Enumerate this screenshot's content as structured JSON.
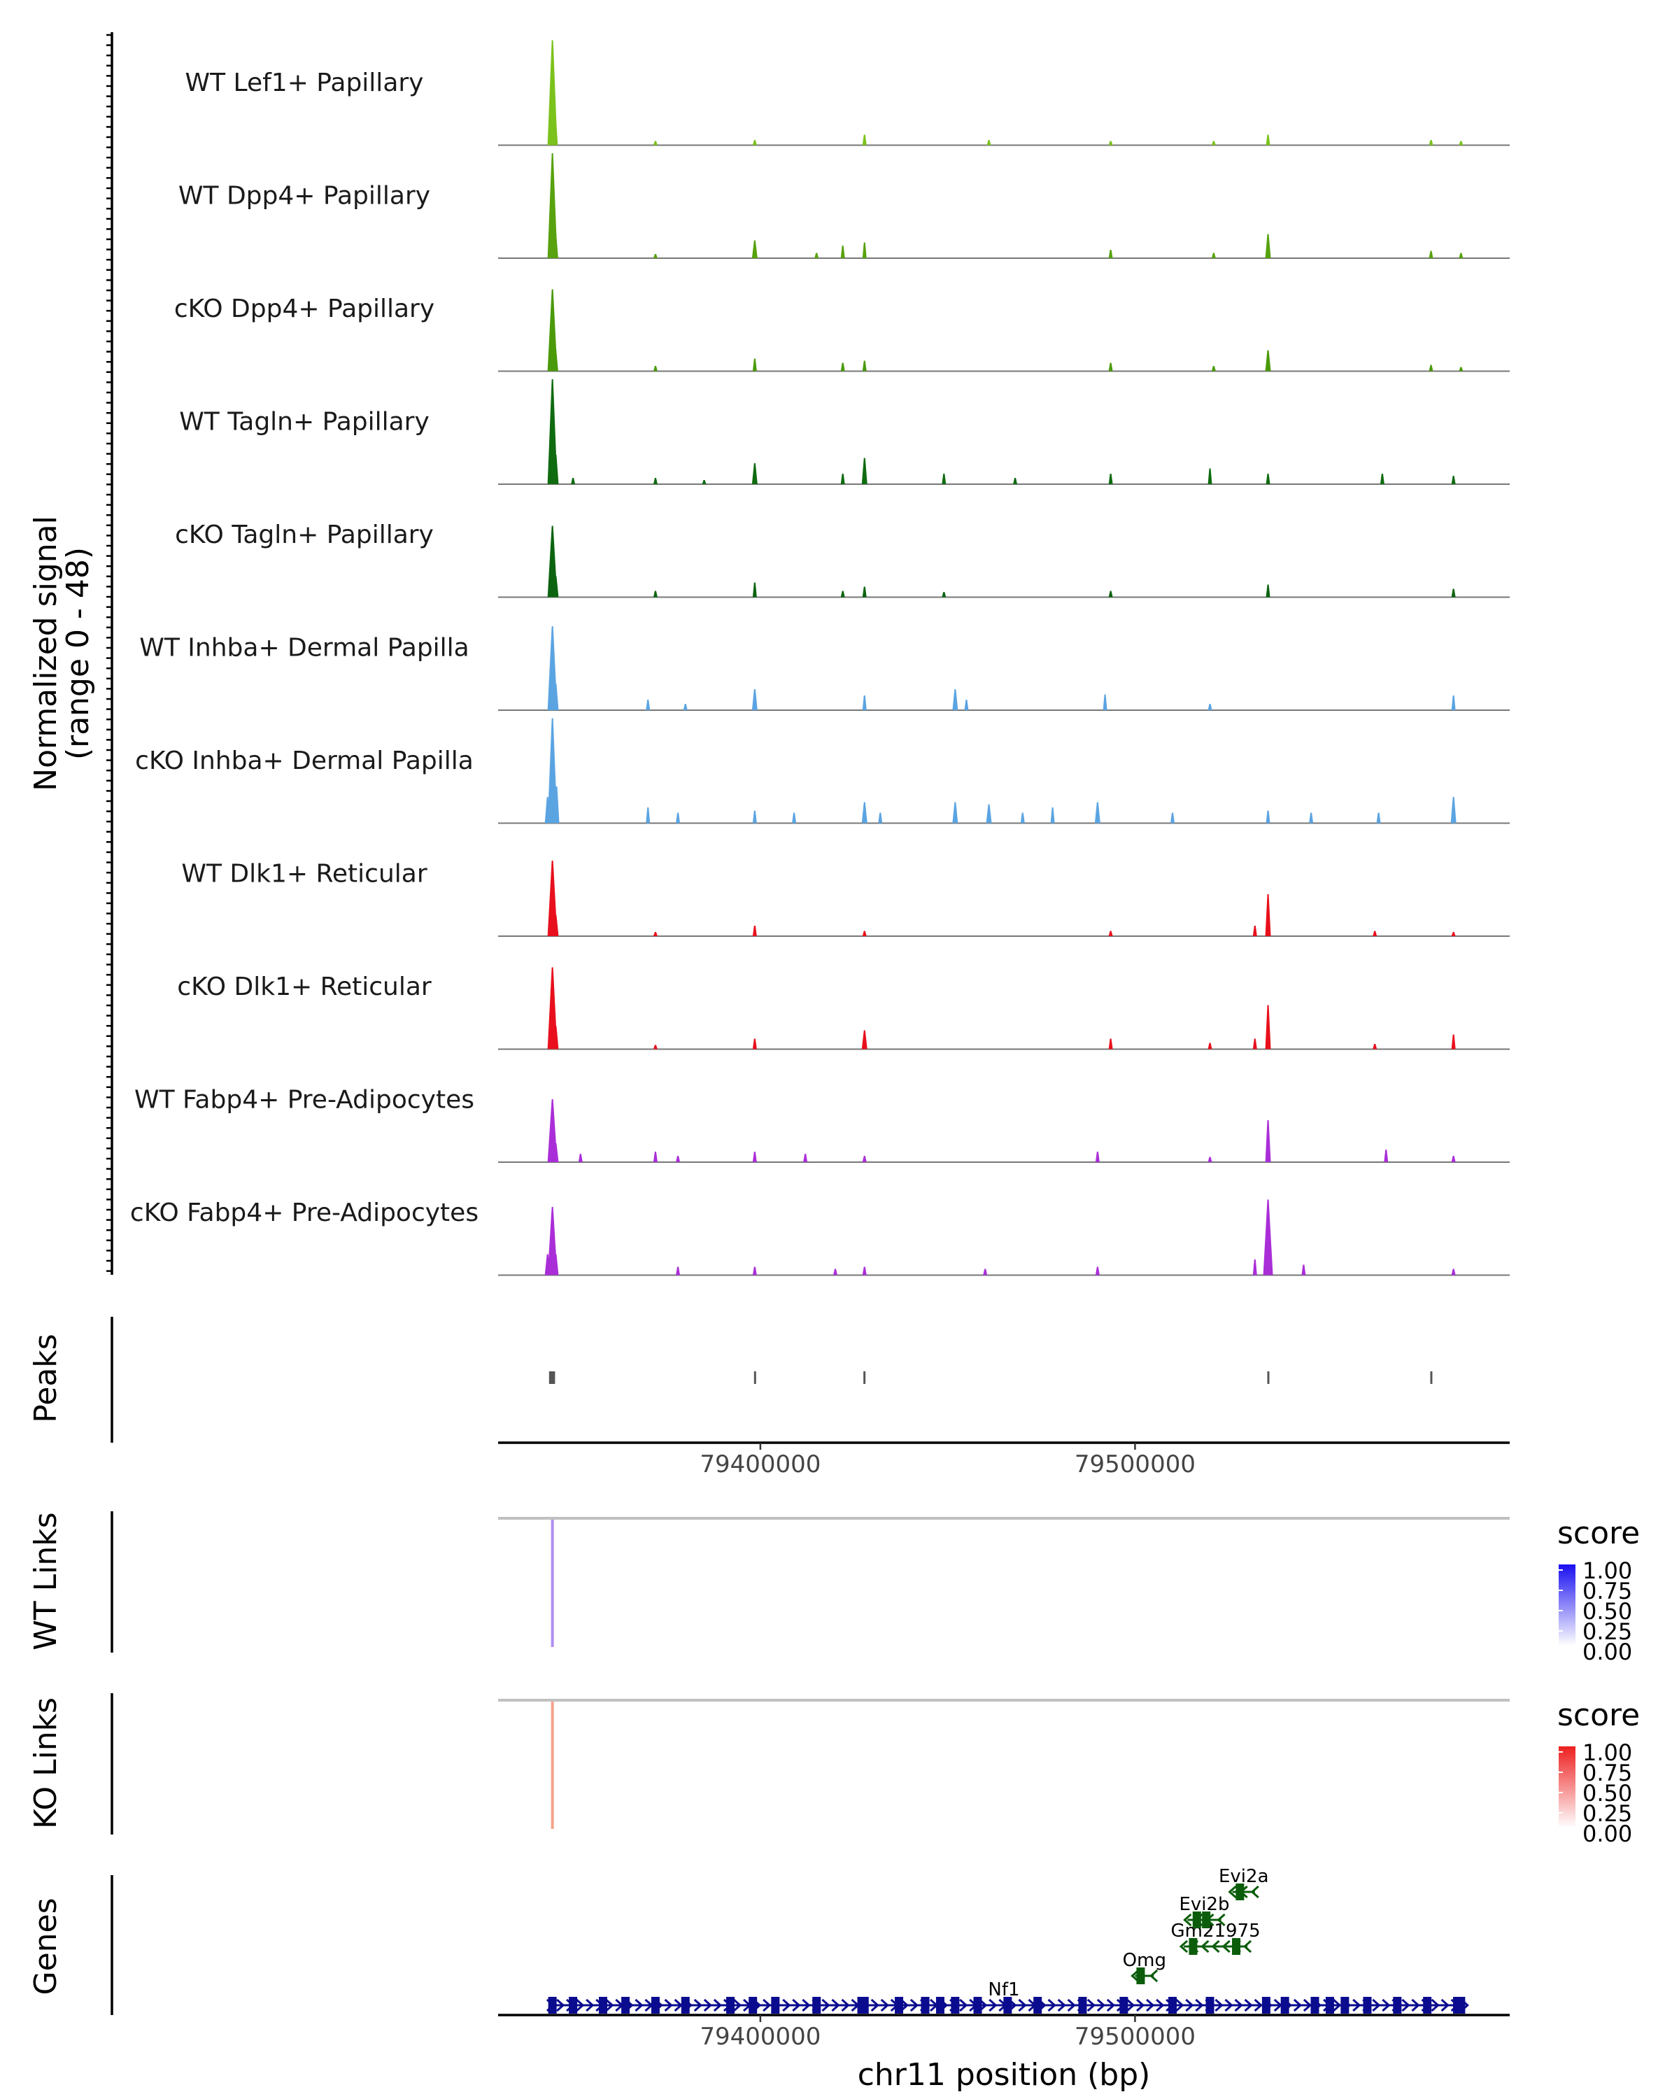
{
  "chart_data": {
    "type": "coverage",
    "chromosome": "chr11",
    "xlabel": "chr11 position (bp)",
    "xlim": [
      79330000,
      79600000
    ],
    "xticks": [
      79400000,
      79500000
    ],
    "xtick_labels": [
      "79400000",
      "79500000"
    ],
    "coverage": {
      "ylabel_line1": "Normalized signal",
      "ylabel_line2": "(range 0 - 48)",
      "ymax": 48,
      "tracks": [
        {
          "label": "WT Lef1+ Papillary",
          "color": "#7cc21c",
          "peaks": [
            {
              "x": 79344500,
              "h": 1.0
            },
            {
              "x": 79345200,
              "h": 0.3
            },
            {
              "x": 79372000,
              "h": 0.04
            },
            {
              "x": 79398500,
              "h": 0.05
            },
            {
              "x": 79427800,
              "h": 0.1
            },
            {
              "x": 79461000,
              "h": 0.05
            },
            {
              "x": 79493500,
              "h": 0.04
            },
            {
              "x": 79521000,
              "h": 0.04
            },
            {
              "x": 79535500,
              "h": 0.1
            },
            {
              "x": 79579000,
              "h": 0.05
            },
            {
              "x": 79587000,
              "h": 0.04
            }
          ]
        },
        {
          "label": "WT Dpp4+ Papillary",
          "color": "#57a20e",
          "peaks": [
            {
              "x": 79344500,
              "h": 1.0
            },
            {
              "x": 79345300,
              "h": 0.25
            },
            {
              "x": 79372000,
              "h": 0.04
            },
            {
              "x": 79398500,
              "h": 0.17
            },
            {
              "x": 79415000,
              "h": 0.05
            },
            {
              "x": 79422000,
              "h": 0.12
            },
            {
              "x": 79427800,
              "h": 0.15
            },
            {
              "x": 79493500,
              "h": 0.08
            },
            {
              "x": 79521000,
              "h": 0.05
            },
            {
              "x": 79535500,
              "h": 0.23
            },
            {
              "x": 79579000,
              "h": 0.07
            },
            {
              "x": 79587000,
              "h": 0.05
            }
          ]
        },
        {
          "label": "cKO Dpp4+ Papillary",
          "color": "#4a9a0a",
          "peaks": [
            {
              "x": 79344500,
              "h": 0.78
            },
            {
              "x": 79345300,
              "h": 0.22
            },
            {
              "x": 79372000,
              "h": 0.05
            },
            {
              "x": 79398500,
              "h": 0.12
            },
            {
              "x": 79422000,
              "h": 0.08
            },
            {
              "x": 79427800,
              "h": 0.1
            },
            {
              "x": 79493500,
              "h": 0.08
            },
            {
              "x": 79521000,
              "h": 0.05
            },
            {
              "x": 79535500,
              "h": 0.2
            },
            {
              "x": 79579000,
              "h": 0.06
            },
            {
              "x": 79587000,
              "h": 0.04
            }
          ]
        },
        {
          "label": "WT Tagln+ Papillary",
          "color": "#0f6b10",
          "peaks": [
            {
              "x": 79344500,
              "h": 1.0
            },
            {
              "x": 79345400,
              "h": 0.28
            },
            {
              "x": 79350000,
              "h": 0.06
            },
            {
              "x": 79372000,
              "h": 0.06
            },
            {
              "x": 79385000,
              "h": 0.04
            },
            {
              "x": 79398500,
              "h": 0.2
            },
            {
              "x": 79422000,
              "h": 0.1
            },
            {
              "x": 79427800,
              "h": 0.25
            },
            {
              "x": 79449000,
              "h": 0.1
            },
            {
              "x": 79468000,
              "h": 0.06
            },
            {
              "x": 79493500,
              "h": 0.1
            },
            {
              "x": 79520000,
              "h": 0.15
            },
            {
              "x": 79535500,
              "h": 0.1
            },
            {
              "x": 79566000,
              "h": 0.1
            },
            {
              "x": 79585000,
              "h": 0.08
            }
          ]
        },
        {
          "label": "cKO Tagln+ Papillary",
          "color": "#0c6410",
          "peaks": [
            {
              "x": 79344500,
              "h": 0.68
            },
            {
              "x": 79345400,
              "h": 0.2
            },
            {
              "x": 79372000,
              "h": 0.06
            },
            {
              "x": 79398500,
              "h": 0.14
            },
            {
              "x": 79422000,
              "h": 0.06
            },
            {
              "x": 79427800,
              "h": 0.1
            },
            {
              "x": 79449000,
              "h": 0.05
            },
            {
              "x": 79493500,
              "h": 0.06
            },
            {
              "x": 79535500,
              "h": 0.12
            },
            {
              "x": 79585000,
              "h": 0.08
            }
          ]
        },
        {
          "label": "WT Inhba+ Dermal Papilla",
          "color": "#5ba4e2",
          "peaks": [
            {
              "x": 79344500,
              "h": 0.8
            },
            {
              "x": 79345400,
              "h": 0.25
            },
            {
              "x": 79370000,
              "h": 0.1
            },
            {
              "x": 79380000,
              "h": 0.06
            },
            {
              "x": 79398500,
              "h": 0.2
            },
            {
              "x": 79427800,
              "h": 0.14
            },
            {
              "x": 79452000,
              "h": 0.2
            },
            {
              "x": 79455000,
              "h": 0.1
            },
            {
              "x": 79492000,
              "h": 0.15
            },
            {
              "x": 79520000,
              "h": 0.06
            },
            {
              "x": 79585000,
              "h": 0.14
            }
          ]
        },
        {
          "label": "cKO Inhba+ Dermal Papilla",
          "color": "#5ba4e2",
          "peaks": [
            {
              "x": 79344500,
              "h": 1.0
            },
            {
              "x": 79343200,
              "h": 0.25
            },
            {
              "x": 79345600,
              "h": 0.35
            },
            {
              "x": 79370000,
              "h": 0.15
            },
            {
              "x": 79378000,
              "h": 0.1
            },
            {
              "x": 79398500,
              "h": 0.12
            },
            {
              "x": 79409000,
              "h": 0.1
            },
            {
              "x": 79427800,
              "h": 0.2
            },
            {
              "x": 79432000,
              "h": 0.1
            },
            {
              "x": 79452000,
              "h": 0.2
            },
            {
              "x": 79461000,
              "h": 0.18
            },
            {
              "x": 79470000,
              "h": 0.1
            },
            {
              "x": 79478000,
              "h": 0.15
            },
            {
              "x": 79490000,
              "h": 0.2
            },
            {
              "x": 79510000,
              "h": 0.1
            },
            {
              "x": 79535500,
              "h": 0.12
            },
            {
              "x": 79547000,
              "h": 0.1
            },
            {
              "x": 79565000,
              "h": 0.1
            },
            {
              "x": 79585000,
              "h": 0.25
            }
          ]
        },
        {
          "label": "WT Dlk1+ Reticular",
          "color": "#e8101c",
          "peaks": [
            {
              "x": 79344500,
              "h": 0.72
            },
            {
              "x": 79345400,
              "h": 0.2
            },
            {
              "x": 79372000,
              "h": 0.04
            },
            {
              "x": 79398500,
              "h": 0.1
            },
            {
              "x": 79427800,
              "h": 0.05
            },
            {
              "x": 79493500,
              "h": 0.05
            },
            {
              "x": 79532000,
              "h": 0.1
            },
            {
              "x": 79535500,
              "h": 0.4
            },
            {
              "x": 79564000,
              "h": 0.05
            },
            {
              "x": 79585000,
              "h": 0.04
            }
          ]
        },
        {
          "label": "cKO Dlk1+ Reticular",
          "color": "#e8101c",
          "peaks": [
            {
              "x": 79344500,
              "h": 0.78
            },
            {
              "x": 79345400,
              "h": 0.22
            },
            {
              "x": 79372000,
              "h": 0.04
            },
            {
              "x": 79398500,
              "h": 0.1
            },
            {
              "x": 79427800,
              "h": 0.18
            },
            {
              "x": 79493500,
              "h": 0.1
            },
            {
              "x": 79520000,
              "h": 0.06
            },
            {
              "x": 79532000,
              "h": 0.1
            },
            {
              "x": 79535500,
              "h": 0.42
            },
            {
              "x": 79564000,
              "h": 0.05
            },
            {
              "x": 79585000,
              "h": 0.14
            }
          ]
        },
        {
          "label": "WT Fabp4+ Pre-Adipocytes",
          "color": "#aa2ed8",
          "peaks": [
            {
              "x": 79344500,
              "h": 0.6
            },
            {
              "x": 79345400,
              "h": 0.18
            },
            {
              "x": 79352000,
              "h": 0.08
            },
            {
              "x": 79372000,
              "h": 0.1
            },
            {
              "x": 79378000,
              "h": 0.06
            },
            {
              "x": 79398500,
              "h": 0.1
            },
            {
              "x": 79412000,
              "h": 0.08
            },
            {
              "x": 79427800,
              "h": 0.06
            },
            {
              "x": 79490000,
              "h": 0.1
            },
            {
              "x": 79520000,
              "h": 0.05
            },
            {
              "x": 79535500,
              "h": 0.4
            },
            {
              "x": 79567000,
              "h": 0.12
            },
            {
              "x": 79585000,
              "h": 0.06
            }
          ]
        },
        {
          "label": "cKO Fabp4+ Pre-Adipocytes",
          "color": "#aa2ed8",
          "peaks": [
            {
              "x": 79344500,
              "h": 0.65
            },
            {
              "x": 79343200,
              "h": 0.2
            },
            {
              "x": 79345400,
              "h": 0.2
            },
            {
              "x": 79378000,
              "h": 0.08
            },
            {
              "x": 79398500,
              "h": 0.08
            },
            {
              "x": 79420000,
              "h": 0.06
            },
            {
              "x": 79427800,
              "h": 0.08
            },
            {
              "x": 79460000,
              "h": 0.06
            },
            {
              "x": 79490000,
              "h": 0.08
            },
            {
              "x": 79532000,
              "h": 0.15
            },
            {
              "x": 79535500,
              "h": 0.72
            },
            {
              "x": 79545000,
              "h": 0.1
            },
            {
              "x": 79585000,
              "h": 0.06
            }
          ]
        }
      ]
    },
    "peaks_track": {
      "label": "Peaks",
      "regions": [
        [
          79343600,
          79345200
        ],
        [
          79398300,
          79398800
        ],
        [
          79427500,
          79428000
        ],
        [
          79535300,
          79535800
        ],
        [
          79578800,
          79579300
        ]
      ]
    },
    "links": [
      {
        "label": "WT Links",
        "anchor": 79344500,
        "score": 0.45,
        "legend_title": "score",
        "legend_ticks": [
          "1.00",
          "0.75",
          "0.50",
          "0.25",
          "0.00"
        ],
        "low_color": "#ffffff",
        "high_color": "#1a0ff0",
        "line_color": "#b18ef2"
      },
      {
        "label": "KO Links",
        "anchor": 79344500,
        "score": 0.4,
        "legend_title": "score",
        "legend_ticks": [
          "1.00",
          "0.75",
          "0.50",
          "0.25",
          "0.00"
        ],
        "low_color": "#ffffff",
        "high_color": "#ee1f1f",
        "line_color": "#f5a38a"
      }
    ],
    "genes": {
      "label": "Genes",
      "items": [
        {
          "name": "Nf1",
          "start": 79344000,
          "end": 79588000,
          "strand": "+",
          "row": 0,
          "color": "#0b0b8f",
          "exons": [
            79344500,
            79350000,
            79358000,
            79364000,
            79372000,
            79380000,
            79392000,
            79398000,
            79404000,
            79415000,
            79427000,
            79427800,
            79437000,
            79444000,
            79448000,
            79452000,
            79458000,
            79466000,
            79474000,
            79486000,
            79497000,
            79510000,
            79520000,
            79535000,
            79540000,
            79548000,
            79552000,
            79556000,
            79562000,
            79570000,
            79578000,
            79586000,
            79587000
          ]
        },
        {
          "name": "Omg",
          "start": 79500000,
          "end": 79505000,
          "strand": "-",
          "row": 1,
          "color": "#0b5d0b",
          "exons": [
            79501500
          ]
        },
        {
          "name": "Gm21975",
          "start": 79513000,
          "end": 79530000,
          "strand": "-",
          "row": 2,
          "color": "#0b5d0b",
          "exons": [
            79515500,
            79527000
          ]
        },
        {
          "name": "Evi2b",
          "start": 79514000,
          "end": 79523000,
          "strand": "-",
          "row": 3,
          "color": "#0b5d0b",
          "exons": [
            79516500,
            79519000
          ]
        },
        {
          "name": "Evi2a",
          "start": 79526000,
          "end": 79532000,
          "strand": "-",
          "row": 4,
          "color": "#0b5d0b",
          "exons": [
            79528000
          ]
        }
      ]
    }
  }
}
